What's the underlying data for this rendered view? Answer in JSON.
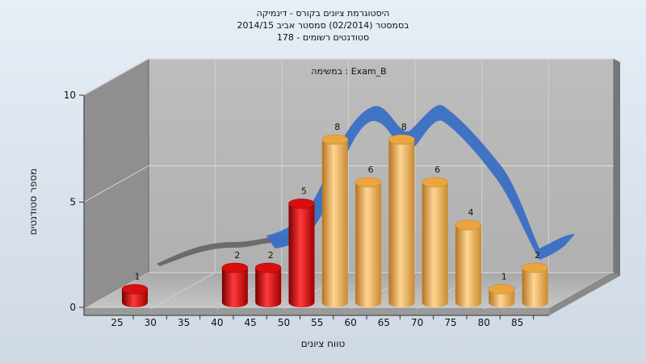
{
  "chart_data": {
    "type": "bar",
    "title_lines": [
      "היסטוגרמת ציונים בקורס - דינמיקה",
      "בסמסטר (02/2014) סמסטר אביב 2014/15",
      "סטודנטים רשומים - 178"
    ],
    "annotation": "במשימה : Exam_B",
    "xlabel": "טווח ציונים",
    "ylabel": "מספר סטודנטים",
    "x_ticks": [
      "25",
      "30",
      "35",
      "40",
      "45",
      "50",
      "55",
      "60",
      "65",
      "70",
      "75",
      "80",
      "85"
    ],
    "y_ticks": [
      "0",
      "5",
      "10"
    ],
    "ylim": [
      0,
      10
    ],
    "bins": [
      {
        "x": 25,
        "value": 1,
        "label": "1"
      },
      {
        "x": 30,
        "value": 0,
        "label": ""
      },
      {
        "x": 35,
        "value": 0,
        "label": ""
      },
      {
        "x": 40,
        "value": 2,
        "label": "2"
      },
      {
        "x": 45,
        "value": 2,
        "label": "2"
      },
      {
        "x": 50,
        "value": 5,
        "label": "5"
      },
      {
        "x": 55,
        "value": 8,
        "label": "8"
      },
      {
        "x": 60,
        "value": 6,
        "label": "6"
      },
      {
        "x": 65,
        "value": 8,
        "label": "8"
      },
      {
        "x": 70,
        "value": 6,
        "label": "6"
      },
      {
        "x": 75,
        "value": 4,
        "label": "4"
      },
      {
        "x": 80,
        "value": 1,
        "label": "1"
      },
      {
        "x": 85,
        "value": 2,
        "label": "2"
      }
    ],
    "pass_threshold": 55,
    "colors": {
      "fail": "#e01010",
      "pass": "#f0b050",
      "curve": "#3a6fc4",
      "curve_shadow": "#6b6b6b"
    },
    "grid": true,
    "legend": "none"
  }
}
